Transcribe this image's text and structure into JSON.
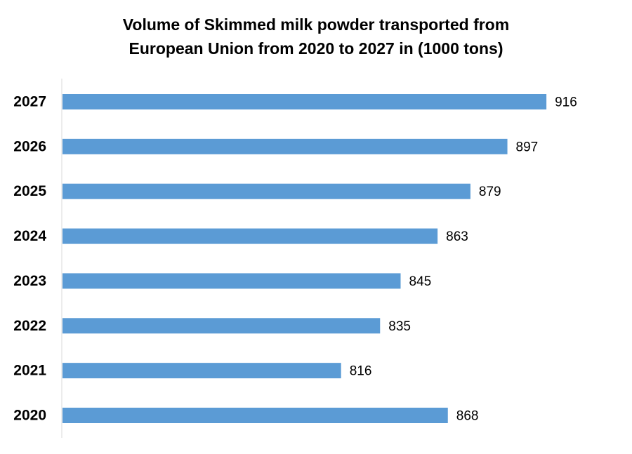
{
  "chart_data": {
    "type": "bar",
    "orientation": "horizontal",
    "title_lines": [
      "Volume of Skimmed milk powder transported from",
      "European Union from 2020 to 2027 in (1000 tons)"
    ],
    "categories": [
      "2020",
      "2021",
      "2022",
      "2023",
      "2024",
      "2025",
      "2026",
      "2027"
    ],
    "values": [
      868,
      816,
      835,
      845,
      863,
      879,
      897,
      916
    ],
    "data_labels": [
      "868",
      "816",
      "835",
      "845",
      "863",
      "879",
      "897",
      "916"
    ],
    "xlim": [
      680,
      944
    ],
    "grid": false,
    "legend": "none",
    "bar_color": "#5B9BD5",
    "axis_color": "#D9D9D9"
  }
}
